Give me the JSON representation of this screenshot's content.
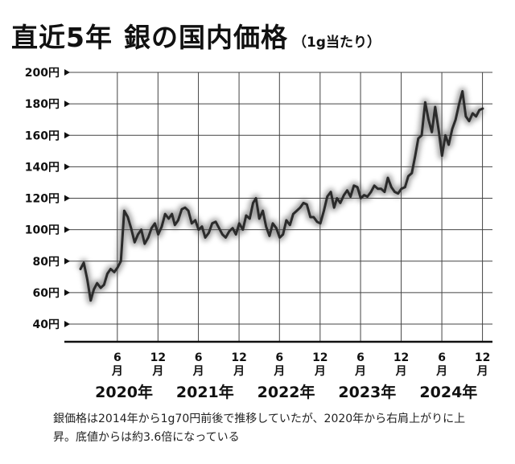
{
  "title": {
    "main_a": "直近5年",
    "main_b": "銀の国内価格",
    "unit": "（1g当たり）"
  },
  "caption": "銀価格は2014年から1g70円前後で推移していたが、2020年から右肩上がりに上昇。底値からは約3.6倍になっている",
  "colors": {
    "line": "#2b2b2b",
    "grid": "#444444",
    "axis": "#111111"
  },
  "chart_data": {
    "type": "line",
    "title": "銀の国内価格",
    "xlabel": "",
    "ylabel": "",
    "ylim": [
      30,
      200
    ],
    "yticks": [
      {
        "value": 200,
        "label": "200円"
      },
      {
        "value": 180,
        "label": "180円"
      },
      {
        "value": 160,
        "label": "160円"
      },
      {
        "value": 140,
        "label": "140円"
      },
      {
        "value": 120,
        "label": "120円"
      },
      {
        "value": 100,
        "label": "100円"
      },
      {
        "value": 80,
        "label": "80円"
      },
      {
        "value": 60,
        "label": "60円"
      },
      {
        "value": 40,
        "label": "40円"
      }
    ],
    "xlim": [
      "2020-01",
      "2024-12"
    ],
    "xticks": [
      {
        "date": "2020-06",
        "label": "6月"
      },
      {
        "date": "2020-12",
        "label": "12月"
      },
      {
        "date": "2021-06",
        "label": "6月"
      },
      {
        "date": "2021-12",
        "label": "12月"
      },
      {
        "date": "2022-06",
        "label": "6月"
      },
      {
        "date": "2022-12",
        "label": "12月"
      },
      {
        "date": "2023-06",
        "label": "6月"
      },
      {
        "date": "2023-12",
        "label": "12月"
      },
      {
        "date": "2024-06",
        "label": "6月"
      },
      {
        "date": "2024-12",
        "label": "12月"
      }
    ],
    "year_labels": [
      {
        "center": "2020-07",
        "label": "2020年"
      },
      {
        "center": "2021-07",
        "label": "2021年"
      },
      {
        "center": "2022-07",
        "label": "2022年"
      },
      {
        "center": "2023-07",
        "label": "2023年"
      },
      {
        "center": "2024-07",
        "label": "2024年"
      }
    ],
    "grid": true,
    "series": [
      {
        "x": [
          "2020-01-01",
          "2020-01-16",
          "2020-02-01",
          "2020-02-16",
          "2020-03-01",
          "2020-03-16",
          "2020-04-01",
          "2020-04-16",
          "2020-05-01",
          "2020-05-16",
          "2020-06-01",
          "2020-06-16",
          "2020-07-01",
          "2020-07-16",
          "2020-08-01",
          "2020-08-16",
          "2020-09-01",
          "2020-09-16",
          "2020-10-01",
          "2020-10-16",
          "2020-11-01",
          "2020-11-16",
          "2020-12-01",
          "2020-12-16",
          "2021-01-01",
          "2021-01-16",
          "2021-02-01",
          "2021-02-16",
          "2021-03-01",
          "2021-03-16",
          "2021-04-01",
          "2021-04-16",
          "2021-05-01",
          "2021-05-16",
          "2021-06-01",
          "2021-06-16",
          "2021-07-01",
          "2021-07-16",
          "2021-08-01",
          "2021-08-16",
          "2021-09-01",
          "2021-09-16",
          "2021-10-01",
          "2021-10-16",
          "2021-11-01",
          "2021-11-16",
          "2021-12-01",
          "2021-12-16",
          "2022-01-01",
          "2022-01-16",
          "2022-02-01",
          "2022-02-16",
          "2022-03-01",
          "2022-03-16",
          "2022-04-01",
          "2022-04-16",
          "2022-05-01",
          "2022-05-16",
          "2022-06-01",
          "2022-06-16",
          "2022-07-01",
          "2022-07-16",
          "2022-08-01",
          "2022-08-16",
          "2022-09-01",
          "2022-09-16",
          "2022-10-01",
          "2022-10-16",
          "2022-11-01",
          "2022-11-16",
          "2022-12-01",
          "2022-12-16",
          "2023-01-01",
          "2023-01-16",
          "2023-02-01",
          "2023-02-16",
          "2023-03-01",
          "2023-03-16",
          "2023-04-01",
          "2023-04-16",
          "2023-05-01",
          "2023-05-16",
          "2023-06-01",
          "2023-06-16",
          "2023-07-01",
          "2023-07-16",
          "2023-08-01",
          "2023-08-16",
          "2023-09-01",
          "2023-09-16",
          "2023-10-01",
          "2023-10-16",
          "2023-11-01",
          "2023-11-16",
          "2023-12-01",
          "2023-12-16",
          "2024-01-01",
          "2024-01-16",
          "2024-02-01",
          "2024-02-16",
          "2024-03-01",
          "2024-03-16",
          "2024-04-01",
          "2024-04-16",
          "2024-05-01",
          "2024-05-16",
          "2024-06-01",
          "2024-06-16",
          "2024-07-01",
          "2024-07-16",
          "2024-08-01",
          "2024-08-16",
          "2024-09-01",
          "2024-09-16",
          "2024-10-01",
          "2024-10-16",
          "2024-11-01",
          "2024-11-16",
          "2024-12-01",
          "2024-12-16"
        ],
        "values": [
          75,
          79,
          68,
          55,
          62,
          66,
          63,
          65,
          72,
          75,
          73,
          76,
          80,
          112,
          108,
          101,
          92,
          97,
          100,
          91,
          95,
          101,
          104,
          97,
          102,
          110,
          107,
          110,
          103,
          106,
          113,
          114,
          112,
          104,
          106,
          100,
          102,
          95,
          98,
          104,
          105,
          101,
          97,
          95,
          99,
          101,
          97,
          104,
          100,
          109,
          107,
          117,
          120,
          107,
          112,
          102,
          96,
          104,
          101,
          95,
          97,
          106,
          103,
          110,
          112,
          114,
          117,
          116,
          108,
          108,
          105,
          104,
          112,
          121,
          124,
          114,
          120,
          117,
          122,
          125,
          121,
          128,
          127,
          120,
          122,
          121,
          124,
          128,
          126,
          126,
          124,
          133,
          127,
          124,
          123,
          126,
          127,
          134,
          136,
          147,
          158,
          160,
          181,
          170,
          162,
          178,
          163,
          147,
          160,
          154,
          164,
          170,
          180,
          188,
          172,
          169,
          174,
          172,
          176,
          177
        ]
      }
    ]
  }
}
